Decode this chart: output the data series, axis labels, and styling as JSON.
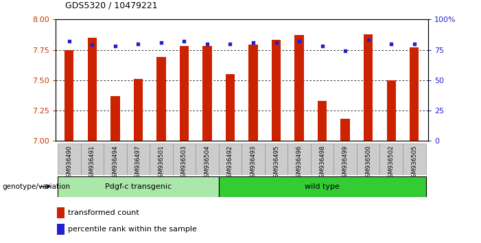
{
  "title": "GDS5320 / 10479221",
  "samples": [
    "GSM936490",
    "GSM936491",
    "GSM936494",
    "GSM936497",
    "GSM936501",
    "GSM936503",
    "GSM936504",
    "GSM936492",
    "GSM936493",
    "GSM936495",
    "GSM936496",
    "GSM936498",
    "GSM936499",
    "GSM936500",
    "GSM936502",
    "GSM936505"
  ],
  "red_values": [
    7.75,
    7.85,
    7.37,
    7.51,
    7.69,
    7.78,
    7.78,
    7.55,
    7.79,
    7.83,
    7.87,
    7.33,
    7.18,
    7.88,
    7.5,
    7.77
  ],
  "blue_values": [
    82,
    79,
    78,
    80,
    81,
    82,
    80,
    80,
    81,
    81,
    82,
    78,
    74,
    83,
    80,
    80
  ],
  "group1_label": "Pdgf-c transgenic",
  "group1_count": 7,
  "group2_label": "wild type",
  "group2_count": 9,
  "group_label": "genotype/variation",
  "ylim_left": [
    7.0,
    8.0
  ],
  "ylim_right": [
    0,
    100
  ],
  "yticks_left": [
    7.0,
    7.25,
    7.5,
    7.75,
    8.0
  ],
  "yticks_right": [
    0,
    25,
    50,
    75,
    100
  ],
  "ytick_labels_right": [
    "0",
    "25",
    "50",
    "75",
    "100%"
  ],
  "bar_color": "#cc2200",
  "dot_color": "#2222cc",
  "bg_color": "#ffffff",
  "tick_label_color_left": "#cc3300",
  "tick_label_color_right": "#2222cc",
  "legend_red_label": "transformed count",
  "legend_blue_label": "percentile rank within the sample",
  "group1_color": "#aae8aa",
  "group2_color": "#33cc33",
  "xticklabel_bg": "#cccccc",
  "bar_width": 0.4
}
